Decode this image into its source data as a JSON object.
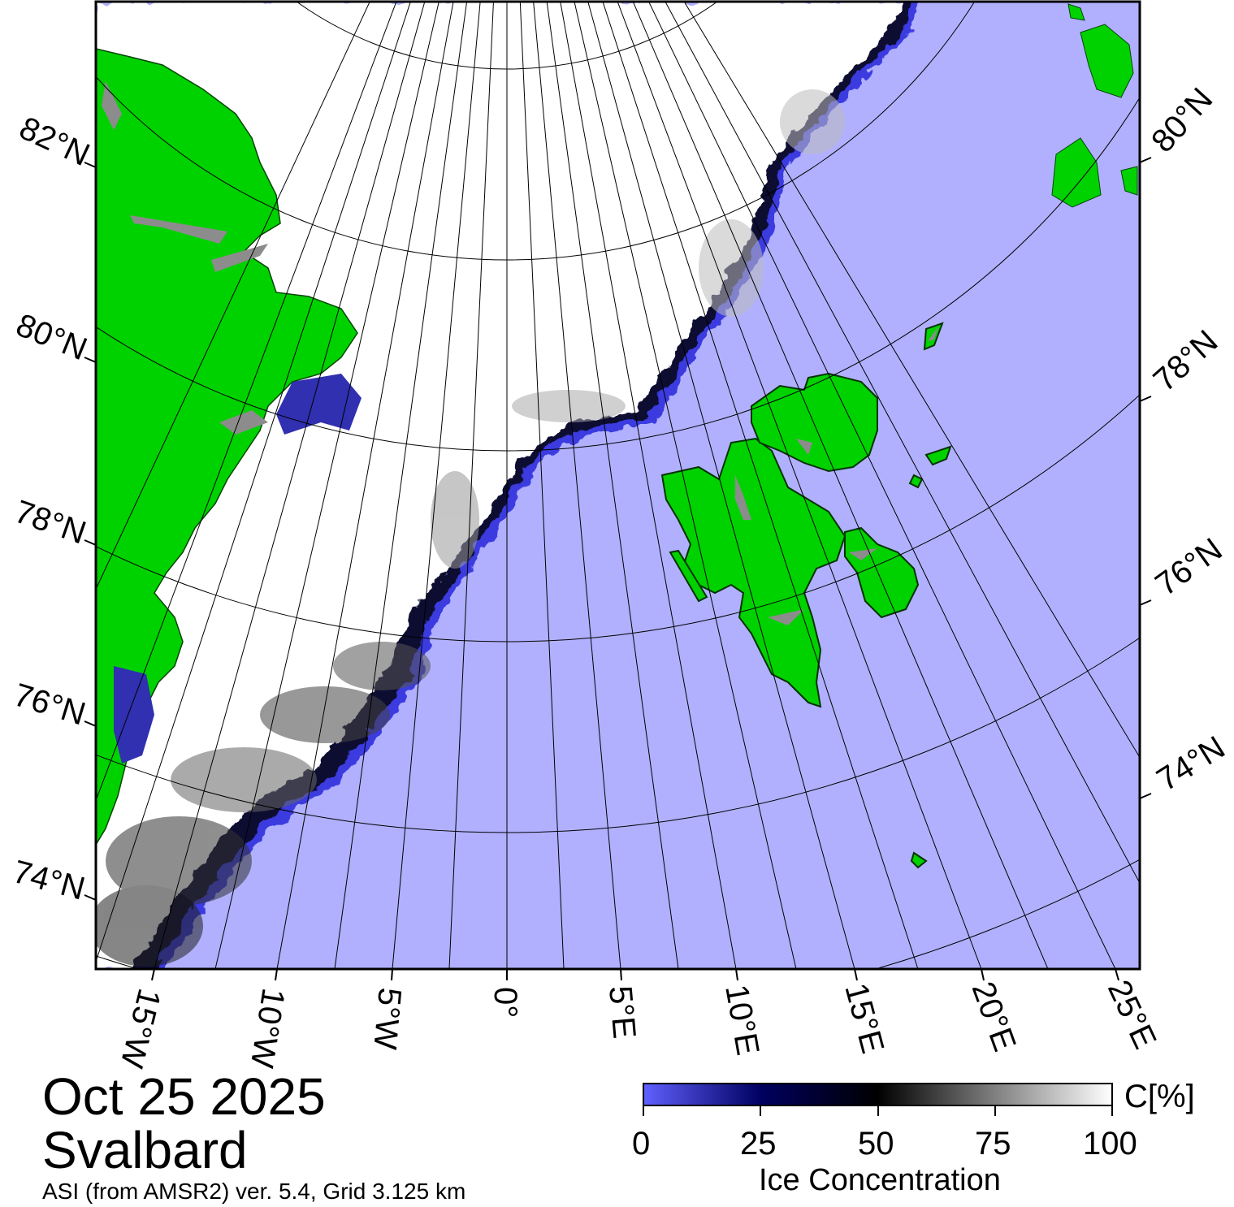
{
  "map": {
    "region": "Svalbard",
    "colors": {
      "open_water": "#b0b0ff",
      "land": "#00d200",
      "land_ice_shelf": "#8c8c8c",
      "ice_full": "#ffffff",
      "ice_edge_dark": "#000000",
      "ice_low": "#6060ff"
    },
    "latitude_labels_left": [
      "82°N",
      "80°N",
      "78°N",
      "76°N",
      "74°N"
    ],
    "latitude_labels_right": [
      "80°N",
      "78°N",
      "76°N",
      "74°N"
    ],
    "longitude_labels": [
      "15°W",
      "10°W",
      "5°W",
      "0°",
      "5°E",
      "10°E",
      "15°E",
      "20°E",
      "25°E"
    ]
  },
  "title": {
    "date": "Oct 25 2025",
    "region": "Svalbard",
    "subtitle": "ASI (from AMSR2) ver. 5.4,  Grid 3.125 km"
  },
  "colorbar": {
    "ticks": [
      "0",
      "25",
      "50",
      "75",
      "100"
    ],
    "unit": "C[%]",
    "title": "Ice Concentration",
    "gradient": [
      "#6060ff",
      "#000060",
      "#000000",
      "#808080",
      "#ffffff"
    ]
  }
}
